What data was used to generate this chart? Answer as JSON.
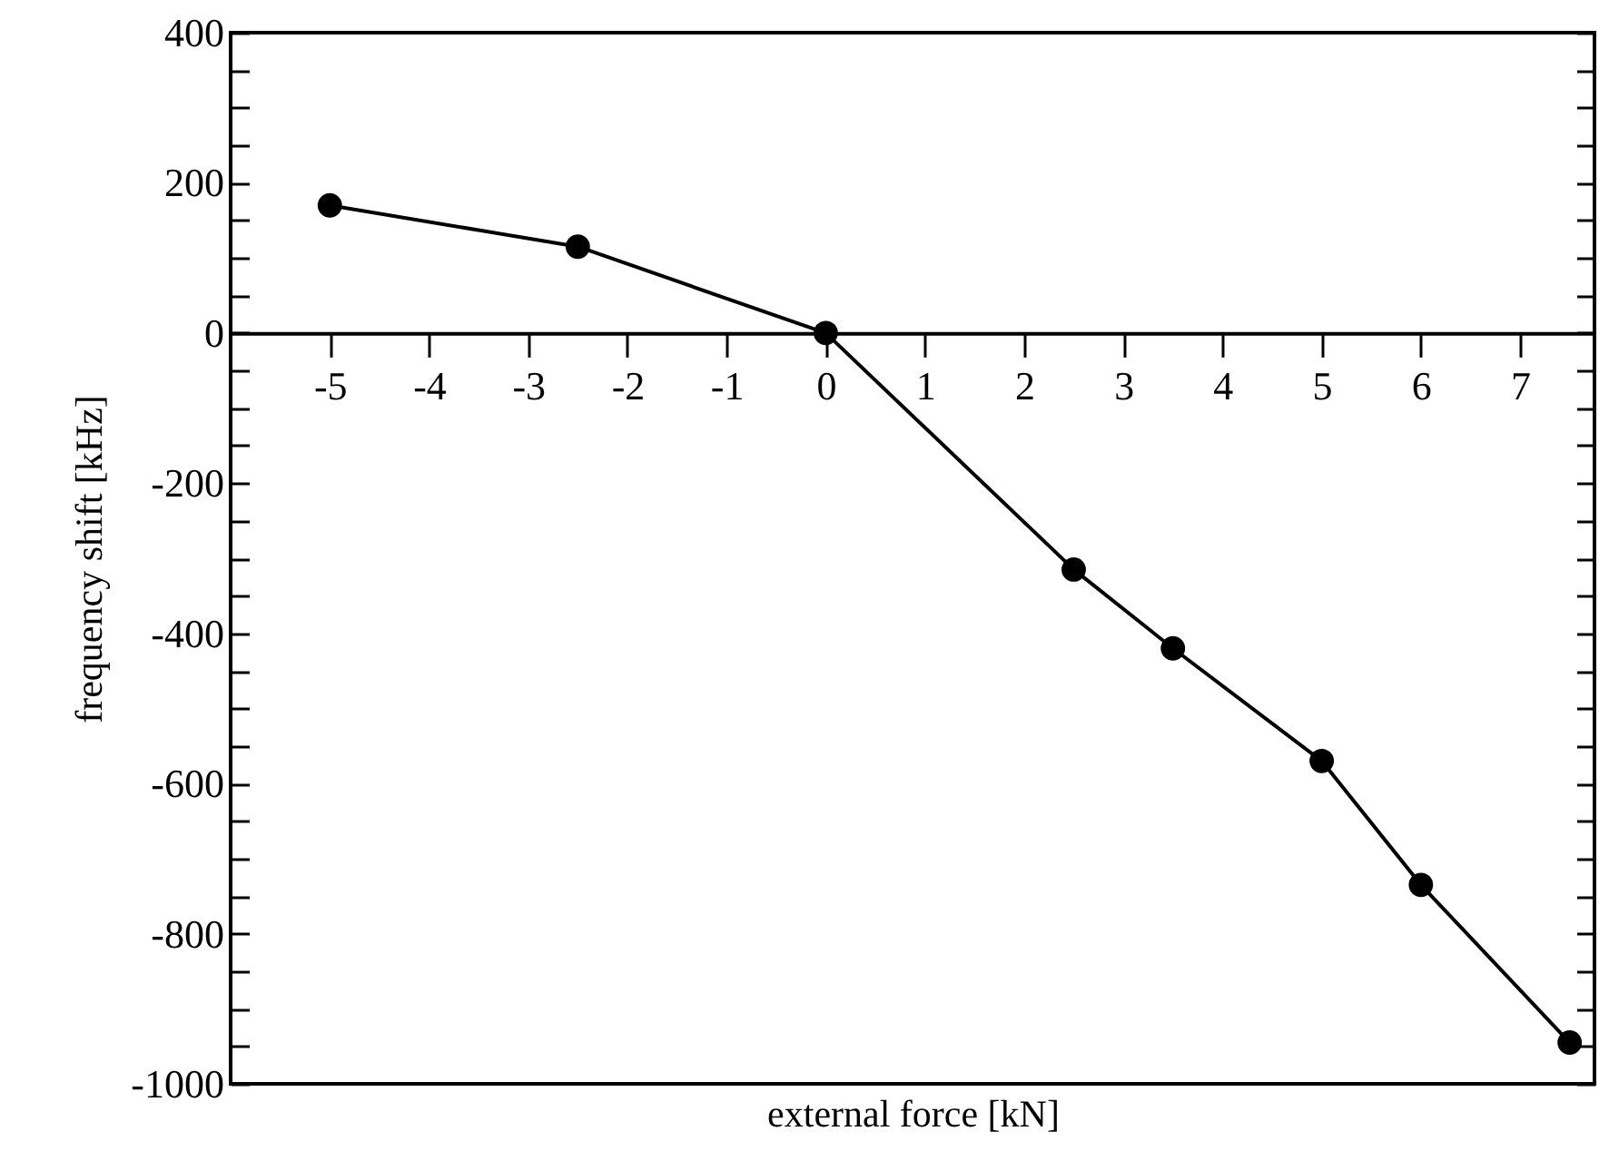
{
  "chart_data": {
    "type": "line",
    "xlabel": "external force [kN]",
    "ylabel": "frequency shift [kHz]",
    "x": [
      -5,
      -2.5,
      0,
      2.5,
      3.5,
      5,
      6,
      7.5
    ],
    "values": [
      170,
      115,
      0,
      -315,
      -420,
      -570,
      -735,
      -945
    ],
    "color": "#000000",
    "marker": "circle",
    "line_style": "solid",
    "grid": false,
    "xlim": [
      -6,
      7.75
    ],
    "xticks": [
      -5,
      -4,
      -3,
      -2,
      -1,
      0,
      1,
      2,
      3,
      4,
      5,
      6,
      7
    ],
    "ylim": [
      -1000,
      400
    ],
    "yticks": [
      -1000,
      {
        "value": -950,
        "label": null
      },
      {
        "value": -900,
        "label": null
      },
      {
        "value": -850,
        "label": null
      },
      -800,
      {
        "value": -750,
        "label": null
      },
      {
        "value": -700,
        "label": null
      },
      {
        "value": -650,
        "label": null
      },
      -600,
      {
        "value": -550,
        "label": null
      },
      {
        "value": -500,
        "label": null
      },
      {
        "value": -450,
        "label": null
      },
      -400,
      {
        "value": -350,
        "label": null
      },
      {
        "value": -300,
        "label": null
      },
      {
        "value": -250,
        "label": null
      },
      -200,
      {
        "value": -150,
        "label": null
      },
      {
        "value": -100,
        "label": null
      },
      {
        "value": -50,
        "label": null
      },
      0,
      {
        "value": 50,
        "label": null
      },
      {
        "value": 100,
        "label": null
      },
      {
        "value": 150,
        "label": null
      },
      200,
      {
        "value": 250,
        "label": null
      },
      {
        "value": 300,
        "label": null
      },
      {
        "value": 350,
        "label": null
      },
      400
    ]
  }
}
